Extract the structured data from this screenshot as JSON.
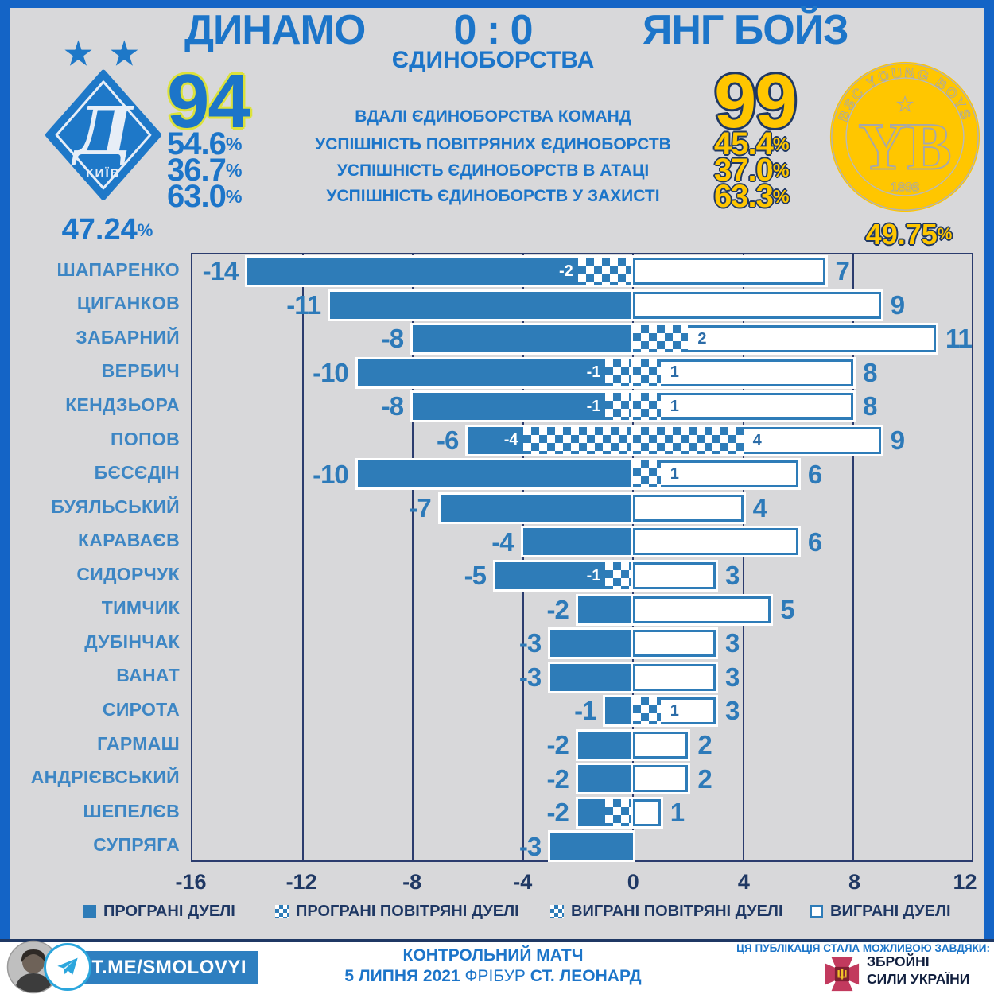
{
  "colors": {
    "frame_blue": "#1464c6",
    "accent_blue": "#1c75c9",
    "bar_blue": "#2e7cb8",
    "navy": "#1f3864",
    "yellow": "#ffc600",
    "lime_outline": "#dce23b",
    "background": "#d8d8da"
  },
  "header": {
    "home_team": "ДИНАМО",
    "score": "0 : 0",
    "away_team": "ЯНГ БОЙЗ",
    "subtitle": "ЄДИНОБОРСТВА"
  },
  "stats": {
    "percent_sign": "%",
    "total_label": "ВДАЛІ ЄДИНОБОРСТВА КОМАНД",
    "home_total": "94",
    "away_total": "99",
    "rows": [
      {
        "label": "УСПІШНІСТЬ ПОВІТРЯНИХ ЄДИНОБОРСТВ",
        "home": "54.6",
        "away": "45.4"
      },
      {
        "label": "УСПІШНІСТЬ ЄДИНОБОРСТВ В АТАЦІ",
        "home": "36.7",
        "away": "37.0"
      },
      {
        "label": "УСПІШНІСТЬ ЄДИНОБОРСТВ У ЗАХИСТІ",
        "home": "63.0",
        "away": "63.3"
      }
    ]
  },
  "teams": {
    "home": {
      "overall_pct": "47.24",
      "logo_letter": "Д",
      "logo_city": "КИЇВ"
    },
    "away": {
      "overall_pct": "49.75",
      "logo_top": "BSC YOUNG BOYS",
      "logo_letters": "YB",
      "logo_year": "1898"
    }
  },
  "chart_data": {
    "type": "bar",
    "orientation": "horizontal",
    "stacked": true,
    "xlim": [
      -16,
      12.3
    ],
    "ticks": [
      -16,
      -12,
      -8,
      -4,
      0,
      4,
      8,
      12
    ],
    "grid": true,
    "series_meaning": "negative = lost duels (solid blue, aerial part checkered), positive = won duels (white outlined, aerial part checkered)",
    "players": [
      {
        "name": "ШАПАРЕНКО",
        "lost_total": -14,
        "lost_aerial": -2,
        "won_aerial": 0,
        "won_total": 7,
        "labels": {
          "lost": "-14",
          "lost_aerial": "-2",
          "won_aerial": "",
          "won": "7"
        }
      },
      {
        "name": "ЦИГАНКОВ",
        "lost_total": -11,
        "lost_aerial": 0,
        "won_aerial": 0,
        "won_total": 9,
        "labels": {
          "lost": "-11",
          "lost_aerial": "",
          "won_aerial": "",
          "won": "9"
        }
      },
      {
        "name": "ЗАБАРНИЙ",
        "lost_total": -8,
        "lost_aerial": 0,
        "won_aerial": 2,
        "won_total": 11,
        "labels": {
          "lost": "-8",
          "lost_aerial": "",
          "won_aerial": "2",
          "won": "11"
        }
      },
      {
        "name": "ВЕРБИЧ",
        "lost_total": -10,
        "lost_aerial": -1,
        "won_aerial": 1,
        "won_total": 8,
        "labels": {
          "lost": "-10",
          "lost_aerial": "-1",
          "won_aerial": "1",
          "won": "8"
        }
      },
      {
        "name": "КЕНДЗЬОРА",
        "lost_total": -8,
        "lost_aerial": -1,
        "won_aerial": 1,
        "won_total": 8,
        "labels": {
          "lost": "-8",
          "lost_aerial": "-1",
          "won_aerial": "1",
          "won": "8"
        }
      },
      {
        "name": "ПОПОВ",
        "lost_total": -6,
        "lost_aerial": -4,
        "won_aerial": 4,
        "won_total": 9,
        "labels": {
          "lost": "-6",
          "lost_aerial": "-4",
          "won_aerial": "4",
          "won": "9"
        }
      },
      {
        "name": "БЄСЄДІН",
        "lost_total": -10,
        "lost_aerial": 0,
        "won_aerial": 1,
        "won_total": 6,
        "labels": {
          "lost": "-10",
          "lost_aerial": "",
          "won_aerial": "1",
          "won": "6"
        }
      },
      {
        "name": "БУЯЛЬСЬКИЙ",
        "lost_total": -7,
        "lost_aerial": 0,
        "won_aerial": 0,
        "won_total": 4,
        "labels": {
          "lost": "-7",
          "lost_aerial": "",
          "won_aerial": "",
          "won": "4"
        }
      },
      {
        "name": "КАРАВАЄВ",
        "lost_total": -4,
        "lost_aerial": 0,
        "won_aerial": 0,
        "won_total": 6,
        "labels": {
          "lost": "-4",
          "lost_aerial": "",
          "won_aerial": "",
          "won": "6"
        }
      },
      {
        "name": "СИДОРЧУК",
        "lost_total": -5,
        "lost_aerial": -1,
        "won_aerial": 0,
        "won_total": 3,
        "labels": {
          "lost": "-5",
          "lost_aerial": "-1",
          "won_aerial": "",
          "won": "3"
        }
      },
      {
        "name": "ТИМЧИК",
        "lost_total": -2,
        "lost_aerial": 0,
        "won_aerial": 0,
        "won_total": 5,
        "labels": {
          "lost": "-2",
          "lost_aerial": "",
          "won_aerial": "",
          "won": "5"
        }
      },
      {
        "name": "ДУБІНЧАК",
        "lost_total": -3,
        "lost_aerial": 0,
        "won_aerial": 0,
        "won_total": 3,
        "labels": {
          "lost": "-3",
          "lost_aerial": "",
          "won_aerial": "",
          "won": "3"
        }
      },
      {
        "name": "ВАНАТ",
        "lost_total": -3,
        "lost_aerial": 0,
        "won_aerial": 0,
        "won_total": 3,
        "labels": {
          "lost": "-3",
          "lost_aerial": "",
          "won_aerial": "",
          "won": "3"
        }
      },
      {
        "name": "СИРОТА",
        "lost_total": -1,
        "lost_aerial": 0,
        "won_aerial": 1,
        "won_total": 3,
        "labels": {
          "lost": "-1",
          "lost_aerial": "",
          "won_aerial": "1",
          "won": "3"
        }
      },
      {
        "name": "ГАРМАШ",
        "lost_total": -2,
        "lost_aerial": 0,
        "won_aerial": 0,
        "won_total": 2,
        "labels": {
          "lost": "-2",
          "lost_aerial": "",
          "won_aerial": "",
          "won": "2"
        }
      },
      {
        "name": "АНДРІЄВСЬКИЙ",
        "lost_total": -2,
        "lost_aerial": 0,
        "won_aerial": 0,
        "won_total": 2,
        "labels": {
          "lost": "-2",
          "lost_aerial": "",
          "won_aerial": "",
          "won": "2"
        }
      },
      {
        "name": "ШЕПЕЛЄВ",
        "lost_total": -2,
        "lost_aerial": -1,
        "won_aerial": 0,
        "won_total": 1,
        "labels": {
          "lost": "-2",
          "lost_aerial": "",
          "won_aerial": "",
          "won": "1"
        }
      },
      {
        "name": "СУПРЯГА",
        "lost_total": -3,
        "lost_aerial": 0,
        "won_aerial": 0,
        "won_total": 0,
        "labels": {
          "lost": "-3",
          "lost_aerial": "",
          "won_aerial": "",
          "won": ""
        }
      }
    ]
  },
  "legend": {
    "items": [
      {
        "label": "ПРОГРАНІ ДУЕЛІ"
      },
      {
        "label": "ПРОГРАНІ ПОВІТРЯНІ ДУЕЛІ"
      },
      {
        "label": "ВИГРАНІ ПОВІТРЯНІ ДУЕЛІ"
      },
      {
        "label": "ВИГРАНІ ДУЕЛІ"
      }
    ]
  },
  "footer": {
    "telegram_handle": "T.ME/SMOLOVYI",
    "match_type": "КОНТРОЛЬНИЙ МАТЧ",
    "date": "5 ЛИПНЯ 2021",
    "venue_city": "ФРІБУР",
    "venue_stadium": "СТ. ЛЕОНАРД",
    "credit_line": "ЦЯ ПУБЛІКАЦІЯ СТАЛА МОЖЛИВОЮ ЗАВДЯКИ:",
    "af_line1": "ЗБРОЙНІ",
    "af_line2": "СИЛИ УКРАЇНИ"
  }
}
